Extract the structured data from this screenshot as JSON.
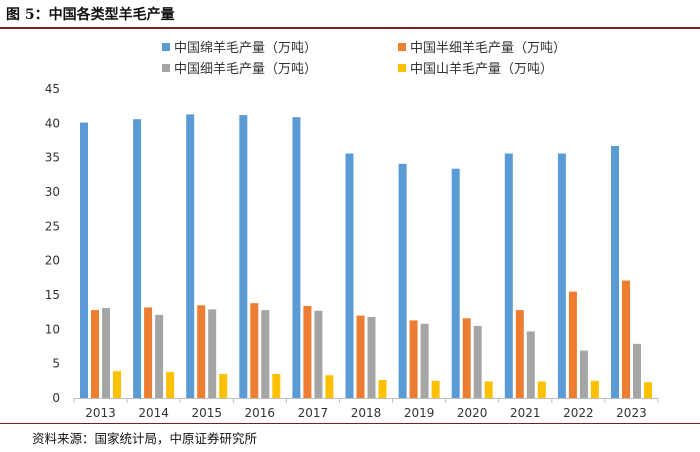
{
  "figure": {
    "title": "图 5：中国各类型羊毛产量",
    "source": "资料来源：国家统计局，中原证券研究所"
  },
  "chart_data": {
    "type": "bar",
    "title": "中国各类型羊毛产量",
    "xlabel": "",
    "ylabel": "",
    "ylim": [
      0,
      45
    ],
    "yticks": [
      0,
      5,
      10,
      15,
      20,
      25,
      30,
      35,
      40,
      45
    ],
    "grid": false,
    "legend_position": "top",
    "categories": [
      "2013",
      "2014",
      "2015",
      "2016",
      "2017",
      "2018",
      "2019",
      "2020",
      "2021",
      "2022",
      "2023"
    ],
    "series": [
      {
        "name": "中国绵羊毛产量（万吨）",
        "color": "#5b9bd5",
        "values": [
          40.1,
          40.6,
          41.3,
          41.2,
          40.9,
          35.6,
          34.1,
          33.4,
          35.6,
          35.6,
          36.7
        ]
      },
      {
        "name": "中国半细羊毛产量（万吨）",
        "color": "#ed7d31",
        "values": [
          12.8,
          13.2,
          13.5,
          13.8,
          13.4,
          12.0,
          11.3,
          11.6,
          12.8,
          15.5,
          17.1
        ]
      },
      {
        "name": "中国细羊毛产量（万吨）",
        "color": "#a5a5a5",
        "values": [
          13.1,
          12.1,
          12.9,
          12.8,
          12.7,
          11.8,
          10.8,
          10.5,
          9.7,
          6.9,
          7.9
        ]
      },
      {
        "name": "中国山羊毛产量（万吨）",
        "color": "#ffc000",
        "values": [
          3.9,
          3.8,
          3.5,
          3.5,
          3.3,
          2.6,
          2.5,
          2.4,
          2.4,
          2.5,
          2.3
        ]
      }
    ]
  }
}
